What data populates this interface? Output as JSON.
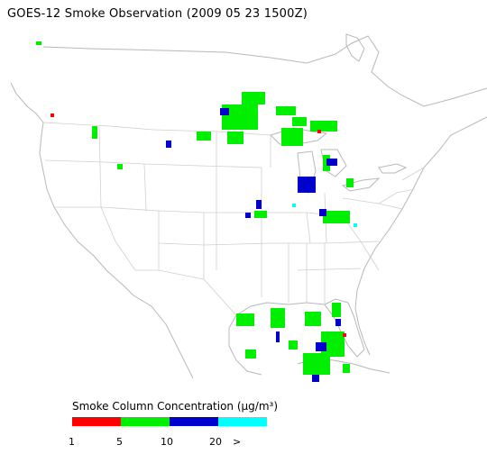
{
  "title": "GOES-12 Smoke Observation (2009 05 23  1500Z)",
  "legend": {
    "title": "Smoke Column Concentration (μg/m³)",
    "ticks": [
      "1",
      "5",
      "10",
      "20",
      ">"
    ],
    "colors": [
      "#ff0000",
      "#00ee00",
      "#0000cc",
      "#00ffff"
    ]
  },
  "map_colors": {
    "land": "#ffffff",
    "boundary": "#cfcfcf",
    "coast": "#b8b8b8"
  }
}
